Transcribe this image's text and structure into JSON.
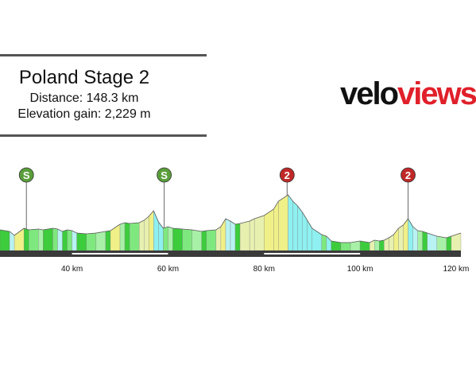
{
  "header": {
    "title": "Poland Stage 2",
    "distance": "Distance: 148.3 km",
    "elevation_gain": "Elevation gain: 2,229 m"
  },
  "logo": {
    "part1": "velo",
    "part2": "views",
    "color_dark": "#111111",
    "color_red": "#e0202a"
  },
  "chart_data": {
    "type": "area",
    "title": "Poland Stage 2",
    "xlabel": "",
    "ylabel": "",
    "x_unit": "km",
    "xlim": [
      25,
      121
    ],
    "x_ticks": [
      40,
      60,
      80,
      100,
      120
    ],
    "x_tick_labels": [
      "40 km",
      "60 km",
      "80 km",
      "100 km",
      "120 km"
    ],
    "grid": false,
    "profile": {
      "x": [
        25,
        27,
        28,
        30,
        31,
        33,
        34,
        36,
        37,
        38,
        39,
        40,
        41,
        43,
        45,
        47,
        48,
        50,
        51,
        52,
        54,
        55,
        56,
        57,
        58,
        59,
        60,
        61,
        63,
        65,
        67,
        68,
        70,
        71,
        72,
        73,
        74,
        75,
        77,
        78,
        80,
        82,
        83,
        85,
        86,
        87,
        88,
        89,
        90,
        92,
        93,
        94,
        96,
        98,
        100,
        102,
        103,
        104,
        105,
        106,
        107,
        108,
        109,
        110,
        111,
        112,
        113,
        114,
        116,
        118,
        119,
        121
      ],
      "elevation": [
        26,
        24,
        19,
        28,
        26,
        27,
        26,
        28,
        27,
        24,
        26,
        25,
        22,
        21,
        22,
        24,
        25,
        33,
        35,
        34,
        35,
        38,
        43,
        50,
        36,
        28,
        30,
        28,
        27,
        26,
        24,
        25,
        26,
        30,
        40,
        37,
        33,
        34,
        37,
        40,
        44,
        52,
        62,
        70,
        62,
        56,
        48,
        38,
        28,
        20,
        18,
        12,
        10,
        10,
        12,
        10,
        13,
        12,
        13,
        16,
        20,
        28,
        32,
        40,
        30,
        25,
        24,
        22,
        18,
        16,
        18,
        22
      ],
      "gradient_colors": [
        "#3ccc3c",
        "#7ee87e",
        "#a8f0a8",
        "#e8f0b0",
        "#f0f088",
        "#8ef0f0",
        "#b8f2f2",
        "#ffffff"
      ]
    },
    "climbs": [
      {
        "label": "S",
        "x": 30.5,
        "color": "#5a9e3a"
      },
      {
        "label": "S",
        "x": 59.2,
        "color": "#5a9e3a"
      },
      {
        "label": "2",
        "x": 84.8,
        "color": "#c02828"
      },
      {
        "label": "2",
        "x": 110.0,
        "color": "#c02828"
      }
    ],
    "road_color": "#3a3a3a"
  }
}
